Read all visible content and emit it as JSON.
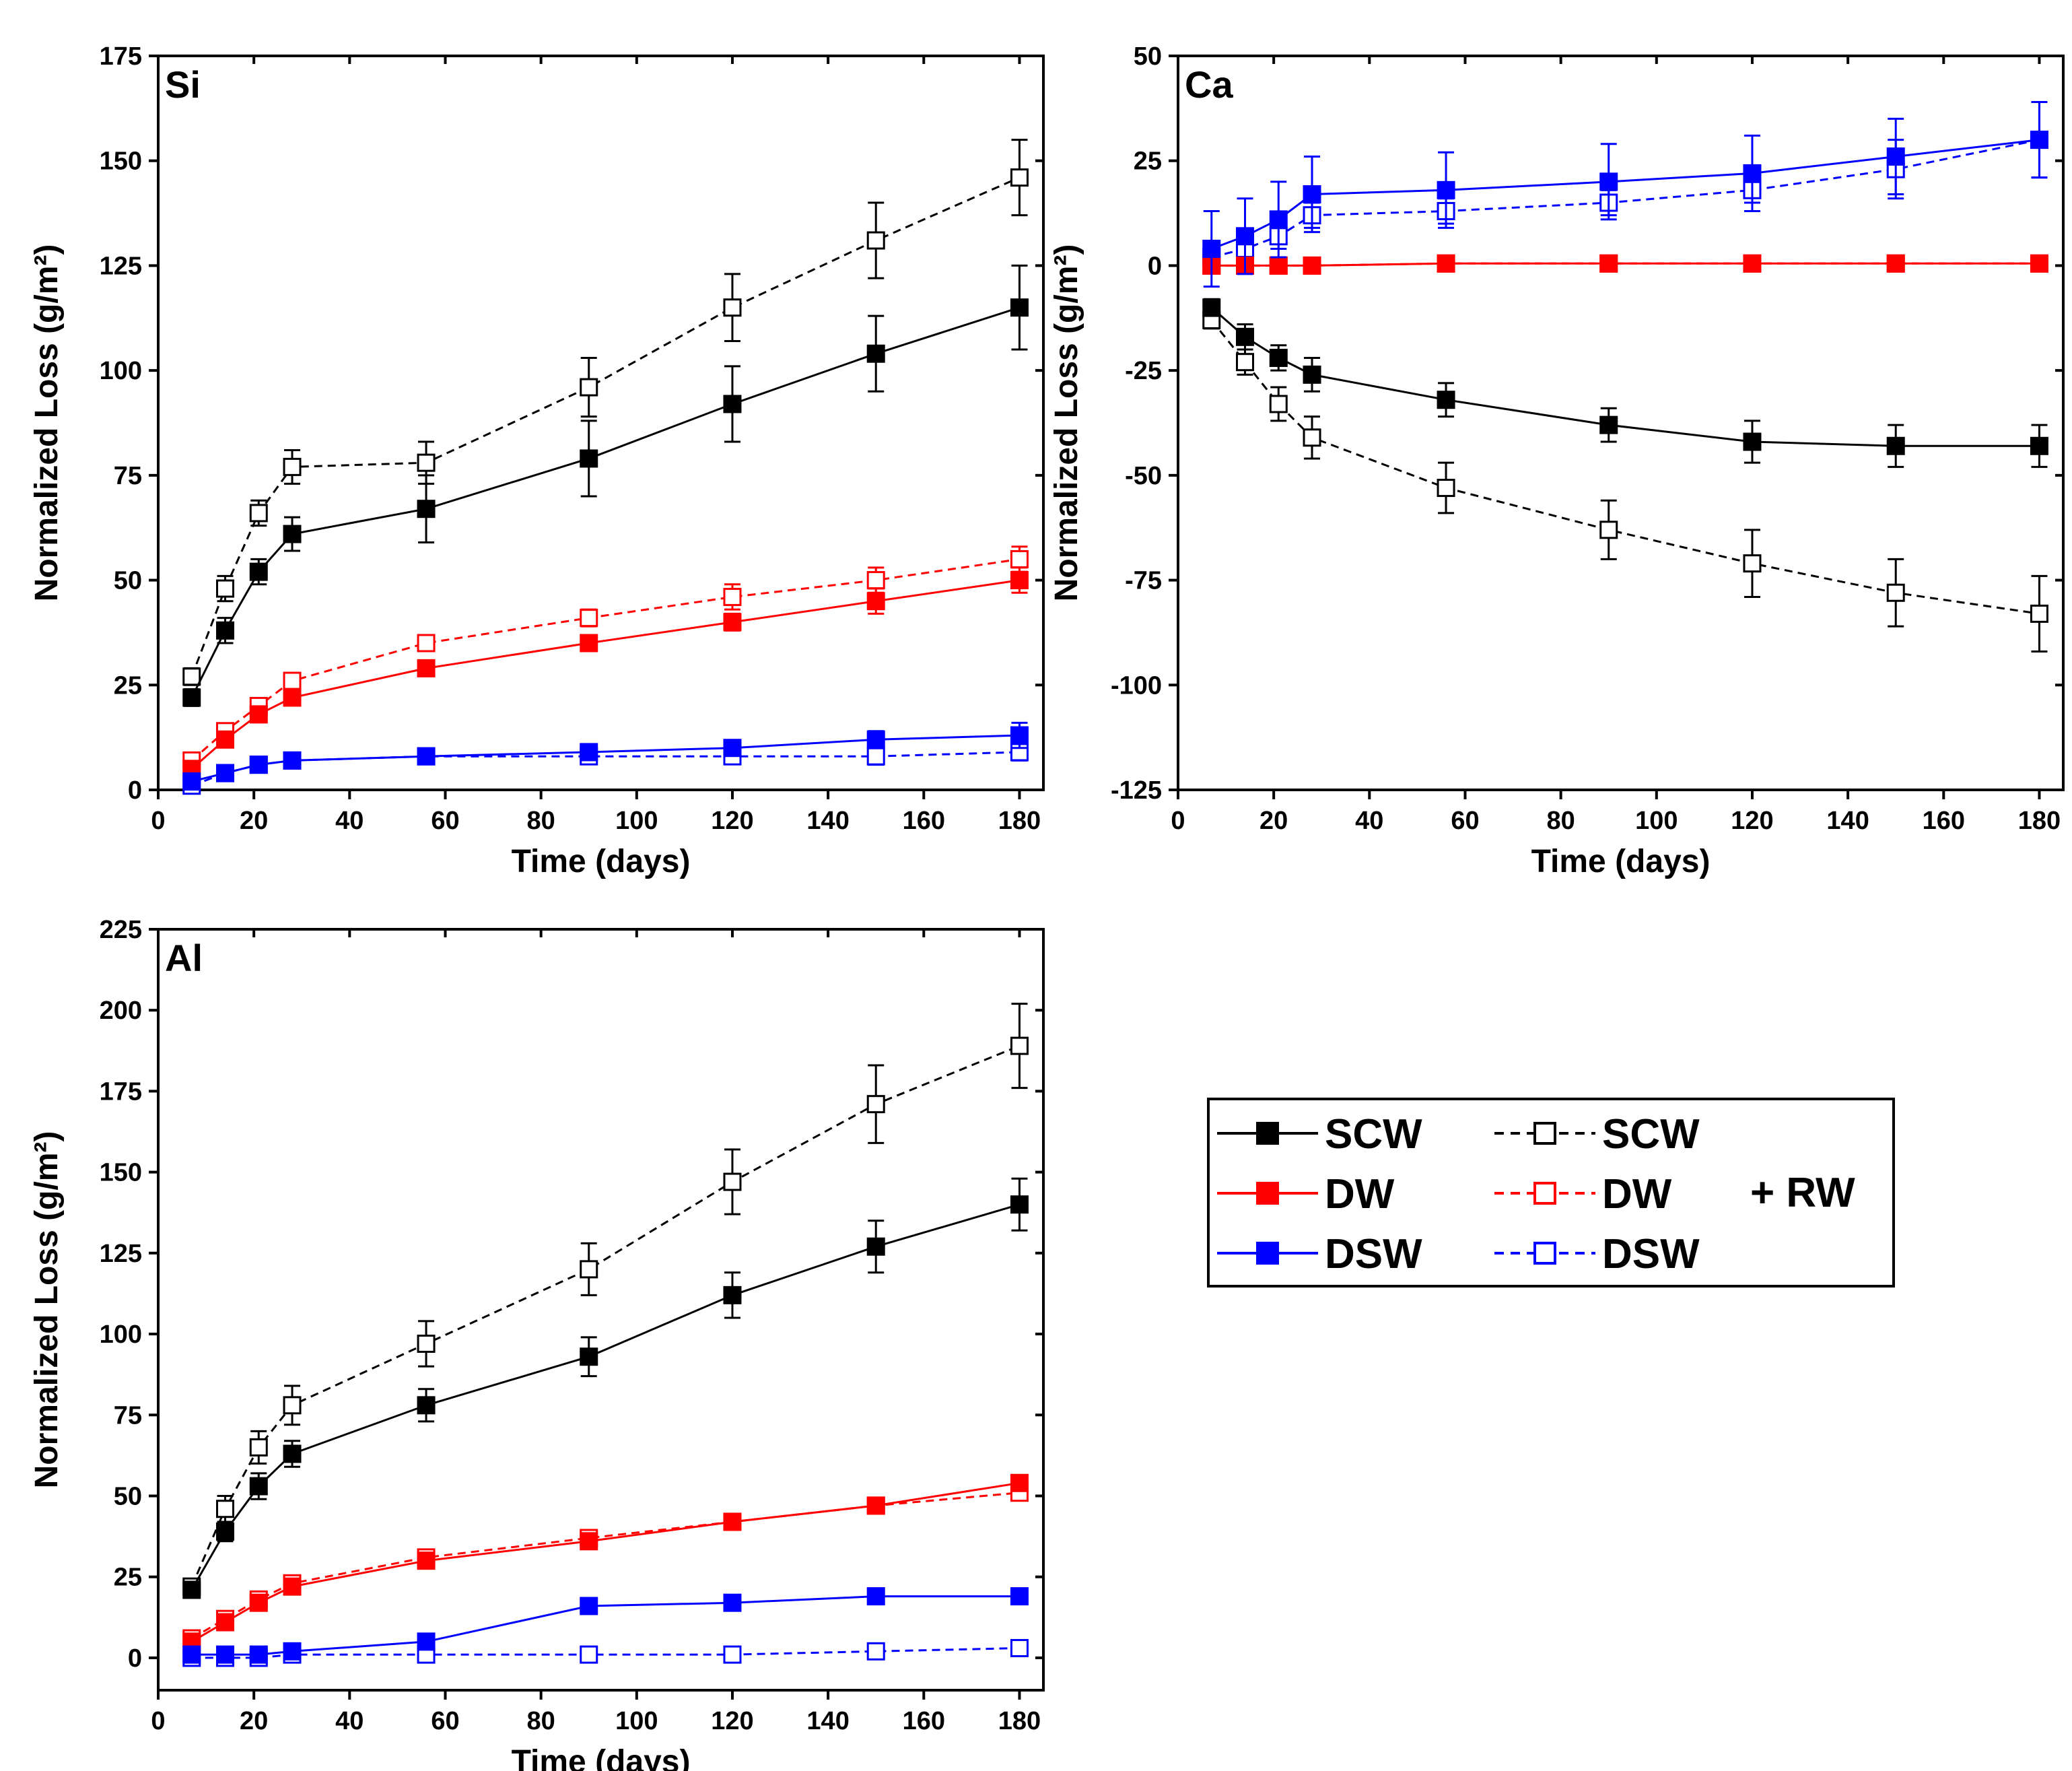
{
  "figure": {
    "legend": {
      "entries": [
        {
          "label": "SCW",
          "color": "#000000",
          "filled": true,
          "dashed": false
        },
        {
          "label": "DW",
          "color": "#ff0000",
          "filled": true,
          "dashed": false
        },
        {
          "label": "DSW",
          "color": "#0000ff",
          "filled": true,
          "dashed": false
        },
        {
          "label": "SCW",
          "color": "#000000",
          "filled": false,
          "dashed": true
        },
        {
          "label": "DW",
          "color": "#ff0000",
          "filled": false,
          "dashed": true
        },
        {
          "label": "DSW",
          "color": "#0000ff",
          "filled": false,
          "dashed": true
        }
      ],
      "suffix": "+  RW"
    }
  },
  "chart_data": [
    {
      "type": "line",
      "panel_label": "Si",
      "xlabel": "Time (days)",
      "ylabel": "Normalized Loss (g/m²)",
      "xlim": [
        0,
        185
      ],
      "ylim": [
        0,
        175
      ],
      "xticks": [
        0,
        20,
        40,
        60,
        80,
        100,
        120,
        140,
        160,
        180
      ],
      "yticks": [
        0,
        25,
        50,
        75,
        100,
        125,
        150,
        175
      ],
      "x": [
        7,
        14,
        21,
        28,
        56,
        90,
        120,
        150,
        180
      ],
      "series": [
        {
          "name": "SCW",
          "color": "#000000",
          "filled": true,
          "dashed": false,
          "values": [
            22,
            38,
            52,
            61,
            67,
            79,
            92,
            104,
            115
          ],
          "errors": [
            2,
            3,
            3,
            4,
            8,
            9,
            9,
            9,
            10
          ]
        },
        {
          "name": "DW",
          "color": "#ff0000",
          "filled": true,
          "dashed": false,
          "values": [
            5,
            12,
            18,
            22,
            29,
            35,
            40,
            45,
            50
          ],
          "errors": [
            1,
            1,
            1,
            1,
            1,
            1,
            2,
            3,
            3
          ]
        },
        {
          "name": "DSW",
          "color": "#0000ff",
          "filled": true,
          "dashed": false,
          "values": [
            2,
            4,
            6,
            7,
            8,
            9,
            10,
            12,
            13
          ],
          "errors": [
            1,
            1,
            1,
            1,
            1,
            1,
            1,
            2,
            3
          ]
        },
        {
          "name": "SCW + RW",
          "color": "#000000",
          "filled": false,
          "dashed": true,
          "values": [
            27,
            48,
            66,
            77,
            78,
            96,
            115,
            131,
            146
          ],
          "errors": [
            2,
            3,
            3,
            4,
            5,
            7,
            8,
            9,
            9
          ]
        },
        {
          "name": "DW + RW",
          "color": "#ff0000",
          "filled": false,
          "dashed": true,
          "values": [
            7,
            14,
            20,
            26,
            35,
            41,
            46,
            50,
            55
          ],
          "errors": [
            1,
            1,
            1,
            1,
            1,
            2,
            3,
            3,
            3
          ]
        },
        {
          "name": "DSW + RW",
          "color": "#0000ff",
          "filled": false,
          "dashed": true,
          "values": [
            1,
            4,
            6,
            7,
            8,
            8,
            8,
            8,
            9
          ],
          "errors": [
            1,
            1,
            1,
            1,
            1,
            1,
            1,
            2,
            2
          ]
        }
      ]
    },
    {
      "type": "line",
      "panel_label": "Ca",
      "xlabel": "Time (days)",
      "ylabel": "Normalized Loss (g/m²)",
      "xlim": [
        0,
        185
      ],
      "ylim": [
        -125,
        50
      ],
      "xticks": [
        0,
        20,
        40,
        60,
        80,
        100,
        120,
        140,
        160,
        180
      ],
      "yticks": [
        -125,
        -100,
        -75,
        -50,
        -25,
        0,
        25,
        50
      ],
      "x": [
        7,
        14,
        21,
        28,
        56,
        90,
        120,
        150,
        180
      ],
      "series": [
        {
          "name": "SCW",
          "color": "#000000",
          "filled": true,
          "dashed": false,
          "values": [
            -10,
            -17,
            -22,
            -26,
            -32,
            -38,
            -42,
            -43,
            -43
          ],
          "errors": [
            2,
            3,
            3,
            4,
            4,
            4,
            5,
            5,
            5
          ]
        },
        {
          "name": "DW",
          "color": "#ff0000",
          "filled": true,
          "dashed": false,
          "values": [
            0,
            0,
            0,
            0,
            0.5,
            0.5,
            0.5,
            0.5,
            0.5
          ],
          "errors": [
            1,
            1,
            1,
            1,
            1,
            1,
            1,
            1,
            1
          ]
        },
        {
          "name": "DSW",
          "color": "#0000ff",
          "filled": true,
          "dashed": false,
          "values": [
            4,
            7,
            11,
            17,
            18,
            20,
            22,
            26,
            30
          ],
          "errors": [
            9,
            9,
            9,
            9,
            9,
            9,
            9,
            9,
            9
          ]
        },
        {
          "name": "SCW + RW",
          "color": "#000000",
          "filled": false,
          "dashed": true,
          "values": [
            -13,
            -23,
            -33,
            -41,
            -53,
            -63,
            -71,
            -78,
            -83
          ],
          "errors": [
            2,
            3,
            4,
            5,
            6,
            7,
            8,
            8,
            9
          ]
        },
        {
          "name": "DW + RW",
          "color": "#ff0000",
          "filled": false,
          "dashed": true,
          "values": [
            0,
            0,
            0,
            0,
            0.5,
            0.5,
            0.5,
            0.5,
            0.5
          ],
          "errors": [
            1,
            1,
            1,
            1,
            1,
            1,
            1,
            1,
            1
          ]
        },
        {
          "name": "DSW + RW",
          "color": "#0000ff",
          "filled": false,
          "dashed": true,
          "values": [
            2,
            4,
            7,
            12,
            13,
            15,
            18,
            23,
            30
          ],
          "errors": [
            3,
            3,
            3,
            3,
            3,
            3,
            3,
            7,
            9
          ]
        }
      ]
    },
    {
      "type": "line",
      "panel_label": "Al",
      "xlabel": "Time (days)",
      "ylabel": "Normalized Loss (g/m²)",
      "xlim": [
        0,
        185
      ],
      "ylim": [
        -10,
        225
      ],
      "xticks": [
        0,
        20,
        40,
        60,
        80,
        100,
        120,
        140,
        160,
        180
      ],
      "yticks": [
        0,
        25,
        50,
        75,
        100,
        125,
        150,
        175,
        200,
        225
      ],
      "x": [
        7,
        14,
        21,
        28,
        56,
        90,
        120,
        150,
        180
      ],
      "series": [
        {
          "name": "SCW",
          "color": "#000000",
          "filled": true,
          "dashed": false,
          "values": [
            21,
            39,
            53,
            63,
            78,
            93,
            112,
            127,
            140
          ],
          "errors": [
            2,
            3,
            4,
            4,
            5,
            6,
            7,
            8,
            8
          ]
        },
        {
          "name": "DW",
          "color": "#ff0000",
          "filled": true,
          "dashed": false,
          "values": [
            5,
            11,
            17,
            22,
            30,
            36,
            42,
            47,
            54
          ],
          "errors": [
            1,
            1,
            1,
            1,
            1,
            1,
            1,
            2,
            2
          ]
        },
        {
          "name": "DSW",
          "color": "#0000ff",
          "filled": true,
          "dashed": false,
          "values": [
            1,
            1,
            1,
            2,
            5,
            16,
            17,
            19,
            19
          ],
          "errors": [
            1,
            1,
            1,
            1,
            1,
            1,
            1,
            1,
            1
          ]
        },
        {
          "name": "SCW + RW",
          "color": "#000000",
          "filled": false,
          "dashed": true,
          "values": [
            22,
            46,
            65,
            78,
            97,
            120,
            147,
            171,
            189
          ],
          "errors": [
            2,
            4,
            5,
            6,
            7,
            8,
            10,
            12,
            13
          ]
        },
        {
          "name": "DW + RW",
          "color": "#ff0000",
          "filled": false,
          "dashed": true,
          "values": [
            6,
            12,
            18,
            23,
            31,
            37,
            42,
            47,
            51
          ],
          "errors": [
            1,
            1,
            1,
            1,
            1,
            1,
            1,
            1,
            1
          ]
        },
        {
          "name": "DSW + RW",
          "color": "#0000ff",
          "filled": false,
          "dashed": true,
          "values": [
            0,
            0,
            0,
            1,
            1,
            1,
            1,
            2,
            3
          ],
          "errors": [
            1,
            1,
            1,
            1,
            1,
            1,
            1,
            1,
            1
          ]
        }
      ]
    }
  ]
}
